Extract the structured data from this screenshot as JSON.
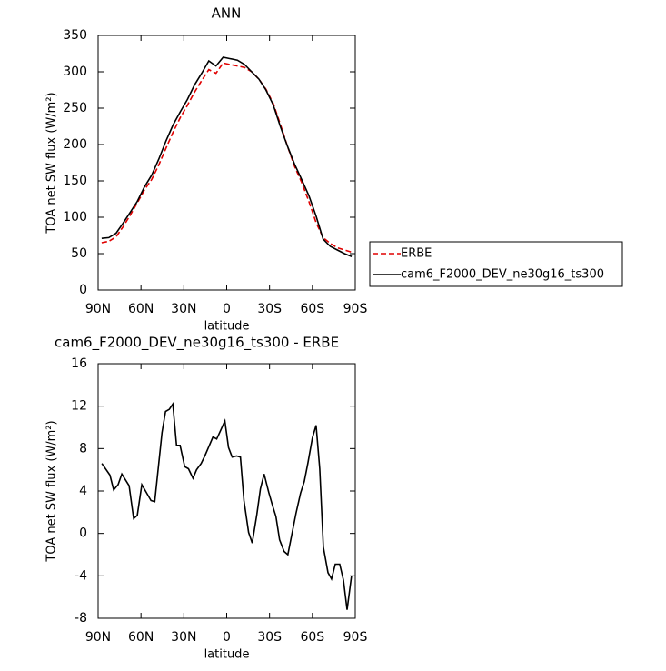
{
  "chart_data": [
    {
      "type": "line",
      "title": "ANN",
      "xlabel": "latitude",
      "ylabel": "TOA net SW flux (W/m²)",
      "x": [
        87.5,
        82.5,
        77.5,
        72.5,
        67.5,
        62.5,
        57.5,
        52.5,
        47.5,
        42.5,
        37.5,
        32.5,
        27.5,
        22.5,
        17.5,
        12.5,
        7.5,
        2.5,
        -2.5,
        -7.5,
        -12.5,
        -17.5,
        -22.5,
        -27.5,
        -32.5,
        -37.5,
        -42.5,
        -47.5,
        -52.5,
        -57.5,
        -62.5,
        -67.5,
        -72.5,
        -77.5,
        -82.5,
        -87.5
      ],
      "series": [
        {
          "name": "ERBE",
          "color": "#e00000",
          "line_style": "dashed",
          "values": [
            65,
            67,
            73,
            87,
            103,
            120,
            138,
            152,
            172,
            195,
            217,
            237,
            254,
            272,
            288,
            303,
            298,
            312,
            310,
            308,
            306,
            300,
            290,
            276,
            257,
            228,
            198,
            170,
            148,
            122,
            93,
            72,
            64,
            58,
            55,
            52
          ]
        },
        {
          "name": "cam6_F2000_DEV_ne30g16_ts300",
          "color": "#000000",
          "line_style": "solid",
          "values": [
            71,
            72,
            78,
            92,
            107,
            122,
            142,
            158,
            180,
            205,
            227,
            245,
            262,
            282,
            298,
            315,
            308,
            320,
            318,
            316,
            310,
            300,
            290,
            275,
            255,
            225,
            198,
            173,
            152,
            130,
            102,
            70,
            60,
            55,
            50,
            46
          ]
        }
      ],
      "xlim": [
        90,
        -90
      ],
      "ylim": [
        0,
        350
      ],
      "xticks": [
        {
          "value": 90,
          "label": "90N"
        },
        {
          "value": 60,
          "label": "60N"
        },
        {
          "value": 30,
          "label": "30N"
        },
        0,
        {
          "value": -30,
          "label": "30S"
        },
        {
          "value": -60,
          "label": "60S"
        },
        {
          "value": -90,
          "label": "90S"
        }
      ],
      "yticks": [
        0,
        50,
        100,
        150,
        200,
        250,
        300,
        350
      ],
      "legend": "right"
    },
    {
      "type": "line",
      "title": "cam6_F2000_DEV_ne30g16_ts300 - ERBE",
      "xlabel": "latitude",
      "ylabel": "TOA net SW flux (W/m²)",
      "x": [
        87.4,
        81.7,
        79.1,
        76.0,
        73.4,
        68.3,
        65.1,
        62.6,
        59.4,
        53.0,
        50.4,
        45.3,
        42.8,
        40.2,
        37.7,
        35.1,
        32.6,
        29.4,
        26.8,
        23.6,
        21.1,
        17.9,
        15.3,
        12.8,
        9.6,
        7.0,
        1.3,
        -1.3,
        -3.8,
        -7.0,
        -9.6,
        -12.1,
        -15.3,
        -17.9,
        -21.1,
        -23.6,
        -26.2,
        -29.4,
        -31.9,
        -34.5,
        -37.0,
        -40.2,
        -42.8,
        -48.5,
        -51.7,
        -54.3,
        -56.8,
        -60.0,
        -62.6,
        -65.1,
        -67.7,
        -70.9,
        -73.4,
        -76.0,
        -79.1,
        -81.7,
        -84.3,
        -87.4
      ],
      "series": [
        {
          "color": "#000000",
          "line_style": "solid",
          "values": [
            6.6,
            5.5,
            4.1,
            4.6,
            5.6,
            4.5,
            1.4,
            1.7,
            4.6,
            3.1,
            3.0,
            9.5,
            11.5,
            11.7,
            12.2,
            8.3,
            8.3,
            6.3,
            6.1,
            5.2,
            6.0,
            6.6,
            7.3,
            8.1,
            9.1,
            8.9,
            10.6,
            8.1,
            7.2,
            7.3,
            7.2,
            3.1,
            0.1,
            -0.9,
            1.8,
            4.2,
            5.6,
            3.9,
            2.7,
            1.6,
            -0.6,
            -1.7,
            -2.0,
            1.9,
            3.8,
            4.9,
            6.6,
            9.0,
            10.2,
            6.1,
            -1.3,
            -3.7,
            -4.3,
            -2.9,
            -2.9,
            -4.4,
            -7.2,
            -4.0
          ]
        }
      ],
      "xlim": [
        90,
        -90
      ],
      "ylim": [
        -8,
        16
      ],
      "xticks": [
        {
          "value": 90,
          "label": "90N"
        },
        {
          "value": 60,
          "label": "60N"
        },
        {
          "value": 30,
          "label": "30N"
        },
        0,
        {
          "value": -30,
          "label": "30S"
        },
        {
          "value": -60,
          "label": "60S"
        },
        {
          "value": -90,
          "label": "90S"
        }
      ],
      "yticks": [
        -8,
        -4,
        0,
        4,
        8,
        12,
        16
      ]
    }
  ]
}
